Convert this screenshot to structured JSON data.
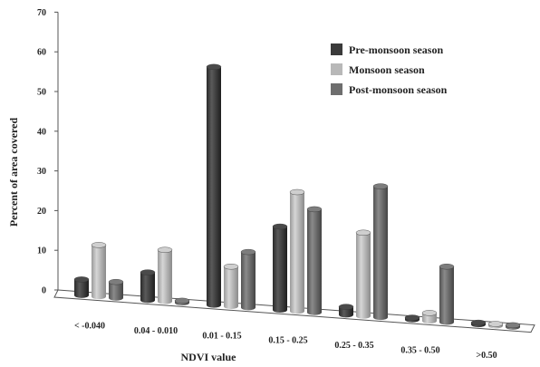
{
  "chart_data": {
    "type": "bar",
    "categories": [
      "< -0.040",
      "0.04 - 0.010",
      "0.01 - 0.15",
      "0.15 - 0.25",
      "0.25 - 0.35",
      "0.35 - 0.50",
      ">0.50"
    ],
    "series": [
      {
        "name": "Pre-monsoon season",
        "values": [
          4,
          7,
          60,
          21,
          2,
          0.5,
          0
        ],
        "color": "#3a3a3a"
      },
      {
        "name": "Monsoon season",
        "values": [
          13,
          13,
          10,
          30,
          21,
          2,
          0
        ],
        "color": "#b8b8b8"
      },
      {
        "name": "Post-monsoon season",
        "values": [
          4,
          0.5,
          14,
          26,
          33,
          14,
          0
        ],
        "color": "#6e6e6e"
      }
    ],
    "xlabel": "NDVI value",
    "ylabel": "Percent of area covered",
    "ylim": [
      0,
      70
    ],
    "yticks": [
      0,
      10,
      20,
      30,
      40,
      50,
      60,
      70
    ],
    "legend_position": "top-right",
    "grid": false
  }
}
